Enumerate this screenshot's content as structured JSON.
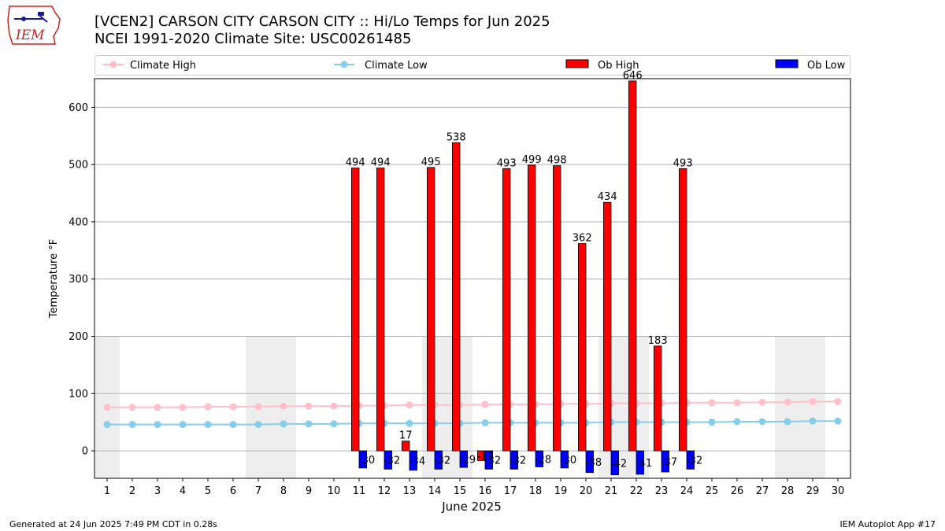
{
  "header": {
    "title_line1": "[VCEN2] CARSON CITY CARSON CITY :: Hi/Lo Temps for Jun 2025",
    "title_line2": "NCEI 1991-2020 Climate Site: USC00261485",
    "logo_text": "IEM"
  },
  "footer": {
    "left": "Generated at 24 Jun 2025 7:49 PM CDT in 0.28s",
    "right": "IEM Autoplot App #17"
  },
  "colors": {
    "climate_high": "#ffc0cb",
    "climate_low": "#87ceeb",
    "ob_high": "#ff0000",
    "ob_low": "#0000ff",
    "weekend_shade": "#eeeeee",
    "grid": "#b0b0b0"
  },
  "chart_data": {
    "type": "bar",
    "xlabel": "June 2025",
    "ylabel": "Temperature °F",
    "xlim": [
      0.5,
      30.5
    ],
    "ylim": [
      -48,
      650
    ],
    "yticks": [
      0,
      100,
      200,
      300,
      400,
      500,
      600
    ],
    "grid": "horizontal",
    "legend_position": "top",
    "days": [
      1,
      2,
      3,
      4,
      5,
      6,
      7,
      8,
      9,
      10,
      11,
      12,
      13,
      14,
      15,
      16,
      17,
      18,
      19,
      20,
      21,
      22,
      23,
      24,
      25,
      26,
      27,
      28,
      29,
      30
    ],
    "shaded_days": [
      1,
      7,
      8,
      14,
      15,
      21,
      22,
      28,
      29
    ],
    "series": [
      {
        "name": "Climate High",
        "kind": "line",
        "values": [
          76,
          76,
          76,
          76,
          77,
          77,
          77,
          78,
          78,
          78,
          79,
          79,
          80,
          80,
          80,
          81,
          81,
          81,
          82,
          82,
          83,
          83,
          83,
          84,
          84,
          84,
          85,
          85,
          86,
          86
        ]
      },
      {
        "name": "Climate Low",
        "kind": "line",
        "values": [
          46,
          46,
          46,
          46,
          46,
          46,
          46,
          47,
          47,
          47,
          48,
          48,
          48,
          48,
          48,
          49,
          49,
          49,
          49,
          49,
          50,
          50,
          50,
          50,
          50,
          51,
          51,
          51,
          52,
          52
        ]
      },
      {
        "name": "Ob High",
        "kind": "bar",
        "values": [
          null,
          null,
          null,
          null,
          null,
          null,
          null,
          null,
          null,
          null,
          494,
          494,
          17,
          495,
          538,
          -17,
          493,
          499,
          498,
          362,
          434,
          646,
          183,
          493,
          null,
          null,
          null,
          null,
          null,
          null
        ]
      },
      {
        "name": "Ob Low",
        "kind": "bar",
        "values": [
          null,
          null,
          null,
          null,
          null,
          null,
          null,
          null,
          null,
          null,
          -30,
          -32,
          -34,
          -32,
          -29,
          -32,
          -32,
          -28,
          -30,
          -38,
          -42,
          -41,
          -37,
          -32,
          null,
          null,
          null,
          null,
          null,
          null
        ]
      }
    ]
  }
}
